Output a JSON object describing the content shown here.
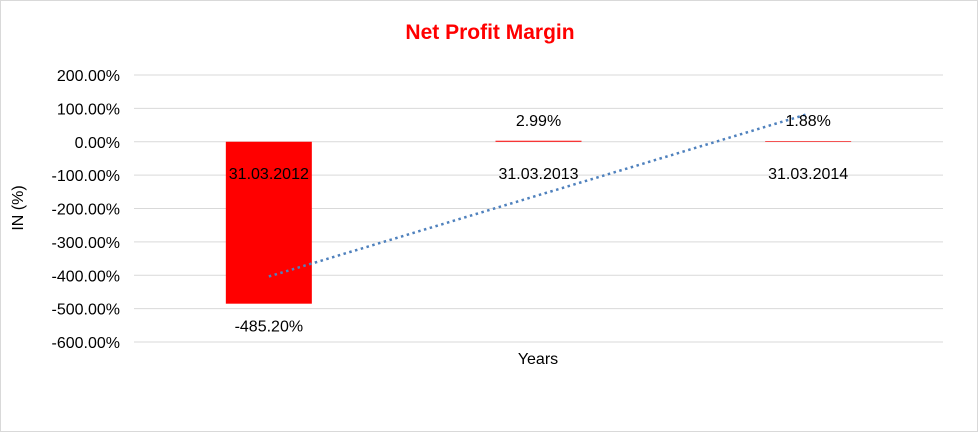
{
  "chart_data": {
    "type": "bar",
    "title": "Net Profit Margin",
    "xlabel": "Years",
    "ylabel": "IN (%)",
    "categories": [
      "31.03.2012",
      "31.03.2013",
      "31.03.2014"
    ],
    "values": [
      -485.2,
      2.99,
      1.88
    ],
    "value_labels": [
      "-485.20%",
      "2.99%",
      "1.88%"
    ],
    "ylim": [
      -600,
      200
    ],
    "y_ticks": [
      200,
      100,
      0,
      -100,
      -200,
      -300,
      -400,
      -500,
      -600
    ],
    "y_tick_labels": [
      "200.00%",
      "100.00%",
      "0.00%",
      "-100.00%",
      "-200.00%",
      "-300.00%",
      "-400.00%",
      "-500.00%",
      "-600.00%"
    ],
    "grid": true,
    "legend": "none",
    "trendline": {
      "type": "linear",
      "style": "dotted"
    },
    "colors": {
      "bar": "#ff0000",
      "title": "#ff0000",
      "trendline": "#4f81bd",
      "grid": "#d9d9d9"
    }
  }
}
